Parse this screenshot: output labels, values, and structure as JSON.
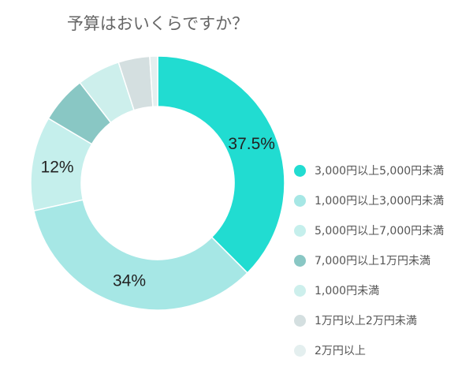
{
  "chart_data": {
    "type": "pie",
    "title": "予算はおいくらですか？",
    "donut": true,
    "legend_position": "right",
    "slices": [
      {
        "label": "3,000円以上5,000円未満",
        "value": 37.5,
        "data_label": "37.5%",
        "color": "#21DCD1"
      },
      {
        "label": "1,000円以上3,000円未満",
        "value": 34,
        "data_label": "34%",
        "color": "#A6E7E5"
      },
      {
        "label": "5,000円以上7,000円未満",
        "value": 12,
        "data_label": "12%",
        "color": "#C5EFEC"
      },
      {
        "label": "7,000円以上1万円未満",
        "value": 6,
        "data_label": "",
        "color": "#89C7C4"
      },
      {
        "label": "1,000円未満",
        "value": 5.5,
        "data_label": "",
        "color": "#CDEFEC"
      },
      {
        "label": "1万円以上2万円未満",
        "value": 4,
        "data_label": "",
        "color": "#D4DFE0"
      },
      {
        "label": "2万円以上",
        "value": 1,
        "data_label": "",
        "color": "#E4EFEF"
      }
    ]
  }
}
